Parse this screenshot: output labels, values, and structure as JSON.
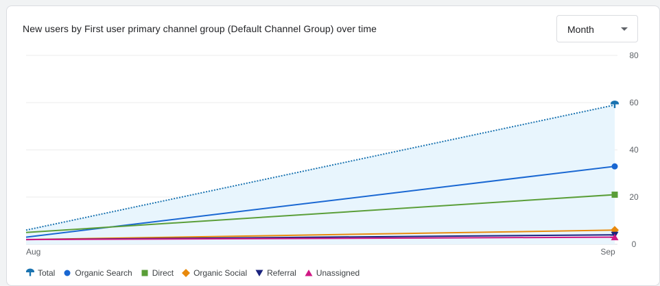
{
  "title": "New users by First user primary channel group (Default Channel Group) over time",
  "period_select": {
    "selected": "Month"
  },
  "chart_data": {
    "type": "line",
    "categories": [
      "Aug",
      "Sep"
    ],
    "y_ticks": [
      "80",
      "60",
      "40",
      "20",
      "0"
    ],
    "ylim": [
      0,
      80
    ],
    "y_axis_side": "right",
    "grid": true,
    "legend_position": "bottom",
    "series": [
      {
        "name": "Total",
        "values": [
          6,
          59
        ],
        "color": "#1a73b0",
        "marker": "pin",
        "dotted": true,
        "area_fill": "#e8f5fd"
      },
      {
        "name": "Organic Search",
        "values": [
          3,
          33
        ],
        "color": "#1967d2",
        "marker": "circle"
      },
      {
        "name": "Direct",
        "values": [
          5,
          21
        ],
        "color": "#5a9e38",
        "marker": "square"
      },
      {
        "name": "Organic Social",
        "values": [
          2,
          6
        ],
        "color": "#e8890c",
        "marker": "diamond"
      },
      {
        "name": "Referral",
        "values": [
          2,
          4
        ],
        "color": "#1a237e",
        "marker": "triangle-down"
      },
      {
        "name": "Unassigned",
        "values": [
          2,
          3
        ],
        "color": "#d01884",
        "marker": "triangle-up"
      }
    ]
  }
}
